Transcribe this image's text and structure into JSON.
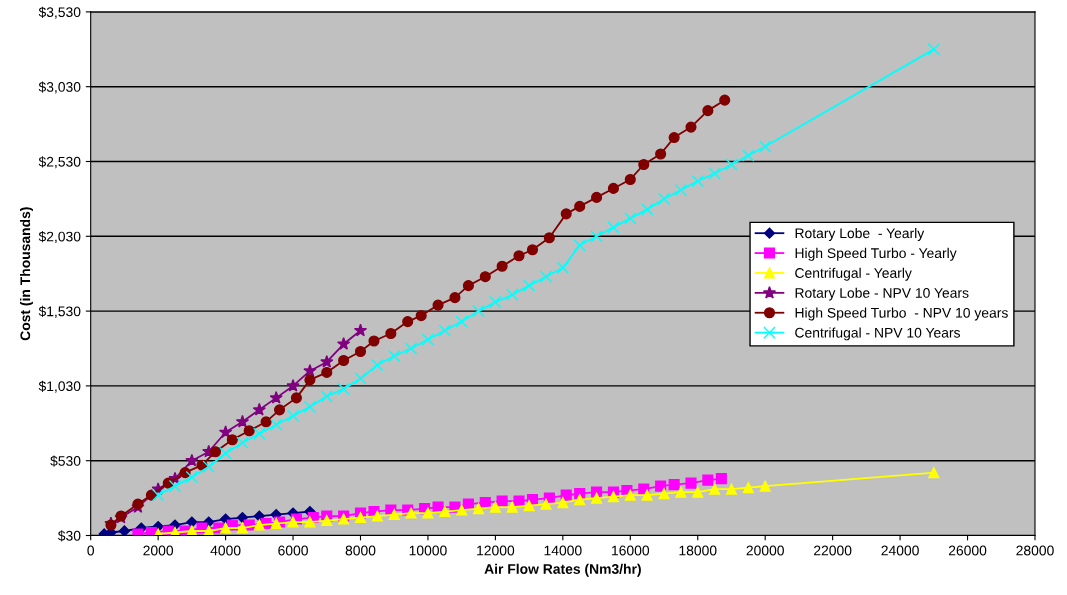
{
  "chart_data": {
    "type": "line",
    "xlabel": "Air Flow Rates (Nm3/hr)",
    "ylabel": "Cost (in Thousands)",
    "xlim": [
      0,
      28000
    ],
    "xticks": [
      0,
      2000,
      4000,
      6000,
      8000,
      10000,
      12000,
      14000,
      16000,
      18000,
      20000,
      22000,
      24000,
      26000,
      28000
    ],
    "ylim": [
      30,
      3530
    ],
    "yticks": [
      {
        "value": 30,
        "label": "$30"
      },
      {
        "value": 530,
        "label": "$530"
      },
      {
        "value": 1030,
        "label": "$1,030"
      },
      {
        "value": 1530,
        "label": "$1,530"
      },
      {
        "value": 2030,
        "label": "$2,030"
      },
      {
        "value": 2530,
        "label": "$2,530"
      },
      {
        "value": 3030,
        "label": "$3,030"
      },
      {
        "value": 3530,
        "label": "$3,530"
      }
    ],
    "grid": "y",
    "legend": "right",
    "series": [
      {
        "name": "Rotary Lobe  - Yearly",
        "color": "#000080",
        "marker": "diamond",
        "x": [
          400,
          600,
          1000,
          1500,
          2000,
          2500,
          3000,
          3500,
          4000,
          4500,
          5000,
          5500,
          6000,
          6500
        ],
        "values": [
          40,
          50,
          60,
          80,
          90,
          100,
          120,
          120,
          140,
          150,
          160,
          170,
          180,
          190
        ]
      },
      {
        "name": "High Speed Turbo - Yearly",
        "color": "#ff00ff",
        "marker": "square",
        "x": [
          1400,
          1800,
          2300,
          2800,
          3300,
          3800,
          4200,
          4700,
          5200,
          5600,
          6100,
          6600,
          7000,
          7500,
          8000,
          8400,
          8900,
          9400,
          9900,
          10300,
          10800,
          11200,
          11700,
          12200,
          12700,
          13100,
          13600,
          14100,
          14500,
          15000,
          15500,
          15900,
          16400,
          16900,
          17300,
          17800,
          18300,
          18700
        ],
        "values": [
          40,
          50,
          60,
          60,
          80,
          80,
          100,
          100,
          110,
          120,
          140,
          150,
          160,
          160,
          180,
          190,
          200,
          200,
          210,
          220,
          220,
          240,
          250,
          260,
          260,
          270,
          280,
          300,
          310,
          320,
          320,
          330,
          340,
          360,
          370,
          380,
          400,
          410
        ]
      },
      {
        "name": "Centrifugal - Yearly",
        "color": "#ffff00",
        "marker": "triangle",
        "x": [
          2000,
          2500,
          3000,
          3500,
          4000,
          4500,
          5000,
          5500,
          6000,
          6500,
          7000,
          7500,
          8000,
          8500,
          9000,
          9500,
          10000,
          10500,
          11000,
          11500,
          12000,
          12500,
          13000,
          13500,
          14000,
          14500,
          15000,
          15500,
          16000,
          16500,
          17000,
          17500,
          18000,
          18500,
          19000,
          19500,
          20000,
          25000
        ],
        "values": [
          40,
          50,
          60,
          60,
          80,
          80,
          100,
          110,
          120,
          120,
          130,
          140,
          150,
          160,
          170,
          180,
          180,
          190,
          200,
          210,
          220,
          220,
          230,
          240,
          250,
          270,
          280,
          290,
          300,
          300,
          310,
          320,
          320,
          340,
          340,
          350,
          360,
          450
        ]
      },
      {
        "name": "Rotary Lobe - NPV 10 Years",
        "color": "#800080",
        "marker": "star",
        "x": [
          600,
          900,
          1400,
          2000,
          2500,
          3000,
          3500,
          4000,
          4500,
          5000,
          5500,
          6000,
          6500,
          7000,
          7500,
          8000
        ],
        "values": [
          110,
          150,
          220,
          340,
          410,
          530,
          590,
          720,
          790,
          870,
          950,
          1030,
          1130,
          1190,
          1310,
          1400
        ]
      },
      {
        "name": "High Speed Turbo  - NPV 10 years",
        "color": "#800000",
        "marker": "circle",
        "x": [
          600,
          900,
          1400,
          1800,
          2300,
          2800,
          3300,
          3700,
          4200,
          4700,
          5200,
          5600,
          6100,
          6500,
          7000,
          7500,
          8000,
          8400,
          8900,
          9400,
          9800,
          10300,
          10800,
          11200,
          11700,
          12200,
          12700,
          13100,
          13600,
          14100,
          14500,
          15000,
          15500,
          16000,
          16400,
          16900,
          17300,
          17800,
          18300,
          18800
        ],
        "values": [
          100,
          160,
          240,
          300,
          380,
          450,
          500,
          590,
          670,
          730,
          790,
          870,
          950,
          1070,
          1120,
          1200,
          1260,
          1330,
          1380,
          1460,
          1500,
          1570,
          1620,
          1700,
          1760,
          1830,
          1900,
          1940,
          2020,
          2180,
          2230,
          2290,
          2350,
          2410,
          2510,
          2580,
          2690,
          2760,
          2870,
          2940
        ]
      },
      {
        "name": "Centrifugal - NPV 10 Years",
        "color": "#00ffff",
        "marker": "cross",
        "x": [
          2000,
          2500,
          3000,
          3500,
          4000,
          4500,
          5000,
          5500,
          6000,
          6500,
          7000,
          7500,
          8000,
          8500,
          9000,
          9500,
          10000,
          10500,
          11000,
          11500,
          12000,
          12500,
          13000,
          13500,
          14000,
          14500,
          15000,
          15500,
          16000,
          16500,
          17000,
          17500,
          18000,
          18500,
          19000,
          19500,
          20000,
          25000
        ],
        "values": [
          300,
          360,
          420,
          490,
          580,
          650,
          710,
          770,
          830,
          890,
          960,
          1010,
          1080,
          1170,
          1230,
          1280,
          1340,
          1400,
          1460,
          1530,
          1590,
          1640,
          1700,
          1760,
          1820,
          1970,
          2030,
          2090,
          2150,
          2210,
          2280,
          2340,
          2400,
          2450,
          2510,
          2570,
          2630,
          3280
        ]
      }
    ]
  }
}
